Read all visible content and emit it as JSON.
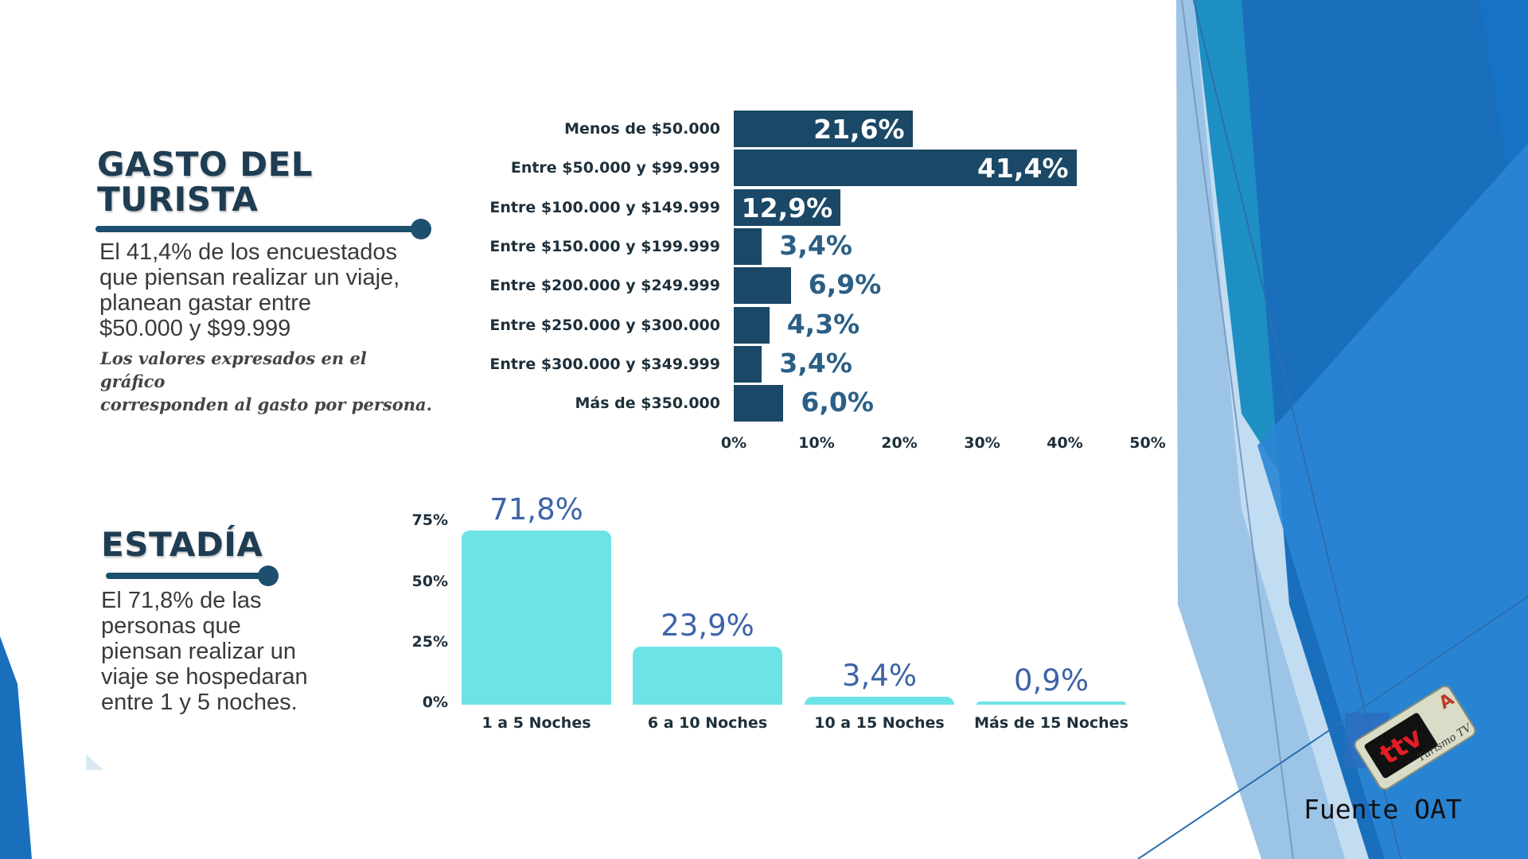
{
  "gasto": {
    "title_line1": "GASTO DEL",
    "title_line2": "TURISTA",
    "paragraph": [
      "El 41,4% de los encuestados",
      "que piensan realizar un viaje,",
      "planean gastar entre",
      "$50.000 y $99.999"
    ],
    "note": [
      "Los valores expresados en el gráfico",
      "corresponden al gasto por persona."
    ]
  },
  "estadia": {
    "title": "ESTADÍA",
    "paragraph": [
      "El 71,8% de las",
      "personas que",
      "piensan realizar un",
      "viaje se hospedaran",
      "entre 1 y 5 noches."
    ]
  },
  "source": "Fuente OAT",
  "logo": {
    "brand": "ttv",
    "caption": "Turismo TV"
  },
  "colors": {
    "hbar": "#1a4866",
    "vbar": "#6de3e8",
    "accent": "#2b5f86"
  },
  "chart_data": [
    {
      "type": "bar",
      "orientation": "horizontal",
      "categories": [
        "Menos de $50.000",
        "Entre $50.000 y $99.999",
        "Entre $100.000 y $149.999",
        "Entre $150.000 y $199.999",
        "Entre $200.000 y $249.999",
        "Entre $250.000 y $300.000",
        "Entre $300.000 y $349.999",
        "Más de $350.000"
      ],
      "values": [
        21.6,
        41.4,
        12.9,
        3.4,
        6.9,
        4.3,
        3.4,
        6.0
      ],
      "value_labels": [
        "21,6%",
        "41,4%",
        "12,9%",
        "3,4%",
        "6,9%",
        "4,3%",
        "3,4%",
        "6,0%"
      ],
      "xlim": [
        0,
        50
      ],
      "xticks": [
        0,
        10,
        20,
        30,
        40,
        50
      ],
      "xtick_labels": [
        "0%",
        "10%",
        "20%",
        "30%",
        "40%",
        "50%"
      ]
    },
    {
      "type": "bar",
      "orientation": "vertical",
      "categories": [
        "1 a 5 Noches",
        "6 a 10 Noches",
        "10 a 15 Noches",
        "Más de 15 Noches"
      ],
      "values": [
        71.8,
        23.9,
        3.4,
        0.9
      ],
      "value_labels": [
        "71,8%",
        "23,9%",
        "3,4%",
        "0,9%"
      ],
      "ylim": [
        0,
        75
      ],
      "yticks": [
        0,
        25,
        50,
        75
      ],
      "ytick_labels": [
        "0%",
        "25%",
        "50%",
        "75%"
      ]
    }
  ]
}
